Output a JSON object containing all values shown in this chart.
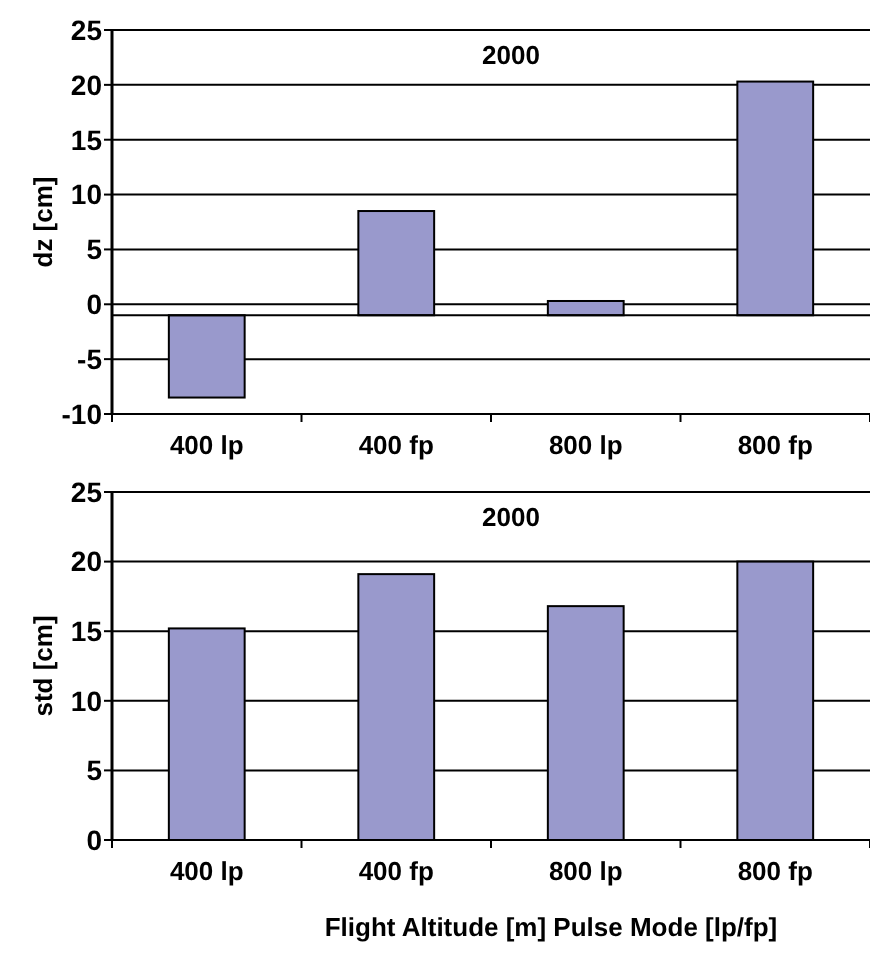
{
  "chart_data": [
    {
      "type": "bar",
      "title": "2000",
      "ylabel": "dz [cm]",
      "categories": [
        "400 lp",
        "400 fp",
        "800 lp",
        "800 fp"
      ],
      "values": [
        -7.5,
        9.5,
        1.3,
        21.3
      ],
      "base": [
        -1,
        -1,
        -1,
        -1
      ],
      "color": "#9999cc",
      "ylim": [
        -10,
        25
      ],
      "yticks": [
        -10,
        -5,
        0,
        5,
        10,
        15,
        20,
        25
      ],
      "grid": "y"
    },
    {
      "type": "bar",
      "title": "2000",
      "ylabel": "std [cm]",
      "xlabel": "Flight Altitude [m] Pulse Mode [lp/fp]",
      "categories": [
        "400 lp",
        "400 fp",
        "800 lp",
        "800 fp"
      ],
      "values": [
        15.2,
        19.1,
        16.8,
        20.0
      ],
      "color": "#9999cc",
      "ylim": [
        0,
        25
      ],
      "yticks": [
        0,
        5,
        10,
        15,
        20,
        25
      ],
      "grid": "y"
    }
  ]
}
